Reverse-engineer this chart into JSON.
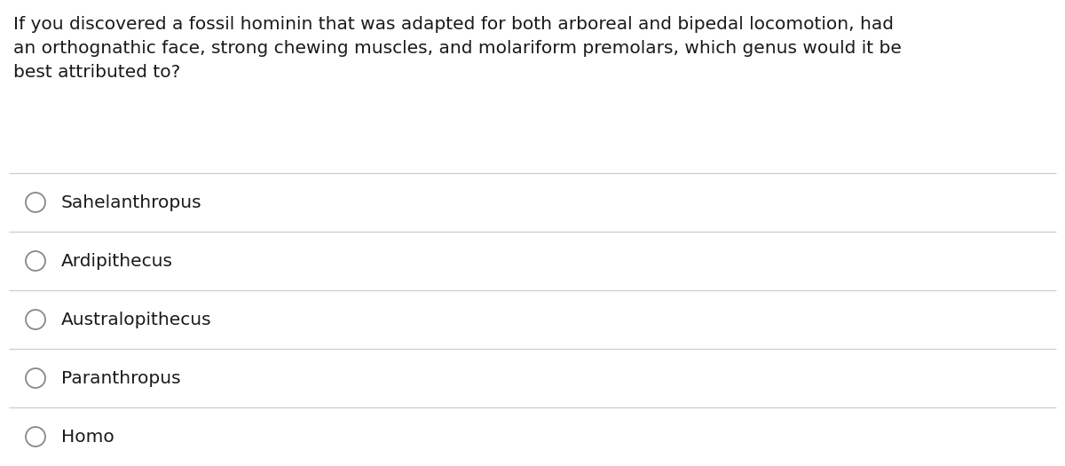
{
  "question": "If you discovered a fossil hominin that was adapted for both arboreal and bipedal locomotion, had\nan orthognathic face, strong chewing muscles, and molariform premolars, which genus would it be\nbest attributed to?",
  "options": [
    "Sahelanthropus",
    "Ardipithecus",
    "Australopithecus",
    "Paranthropus",
    "Homo"
  ],
  "background_color": "#ffffff",
  "text_color": "#1a1a1a",
  "circle_edge_color": "#888888",
  "line_color": "#cccccc",
  "question_fontsize": 14.5,
  "option_fontsize": 14.5,
  "fig_width": 12.0,
  "fig_height": 5.25,
  "dpi": 100
}
